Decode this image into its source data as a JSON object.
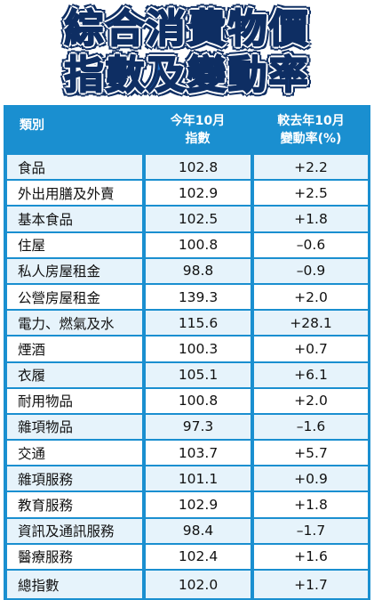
{
  "title": {
    "line1": "綜合消費物價",
    "line2": "指數及變動率"
  },
  "table": {
    "headers": {
      "category": "類別",
      "index_line1": "今年10月",
      "index_line2": "指數",
      "change_line1": "較去年10月",
      "change_line2": "變動率(%)"
    },
    "rows": [
      {
        "category": "食品",
        "index": "102.8",
        "change": "+2.2"
      },
      {
        "category": "外出用膳及外賣",
        "index": "102.9",
        "change": "+2.5"
      },
      {
        "category": "基本食品",
        "index": "102.5",
        "change": "+1.8"
      },
      {
        "category": "住屋",
        "index": "100.8",
        "change": "–0.6"
      },
      {
        "category": "私人房屋租金",
        "index": "98.8",
        "change": "–0.9"
      },
      {
        "category": "公營房屋租金",
        "index": "139.3",
        "change": "+2.0"
      },
      {
        "category": "電力、燃氣及水",
        "index": "115.6",
        "change": "+28.1"
      },
      {
        "category": "煙酒",
        "index": "100.3",
        "change": "+0.7"
      },
      {
        "category": "衣履",
        "index": "105.1",
        "change": "+6.1"
      },
      {
        "category": "耐用物品",
        "index": "100.8",
        "change": "+2.0"
      },
      {
        "category": "雜項物品",
        "index": "97.3",
        "change": "–1.6"
      },
      {
        "category": "交通",
        "index": "103.7",
        "change": "+5.7"
      },
      {
        "category": "雜項服務",
        "index": "101.1",
        "change": "+0.9"
      },
      {
        "category": "教育服務",
        "index": "102.9",
        "change": "+1.8"
      },
      {
        "category": "資訊及通訊服務",
        "index": "98.4",
        "change": "–1.7"
      },
      {
        "category": "醫療服務",
        "index": "102.4",
        "change": "+1.6"
      },
      {
        "category": "總指數",
        "index": "102.0",
        "change": "+1.7"
      }
    ]
  },
  "colors": {
    "title_fill": "#1f6fc4",
    "title_outline": "#0e2e63",
    "header_bg": "#1a8fd0",
    "row_alt_bg": "#e6f3fb"
  }
}
